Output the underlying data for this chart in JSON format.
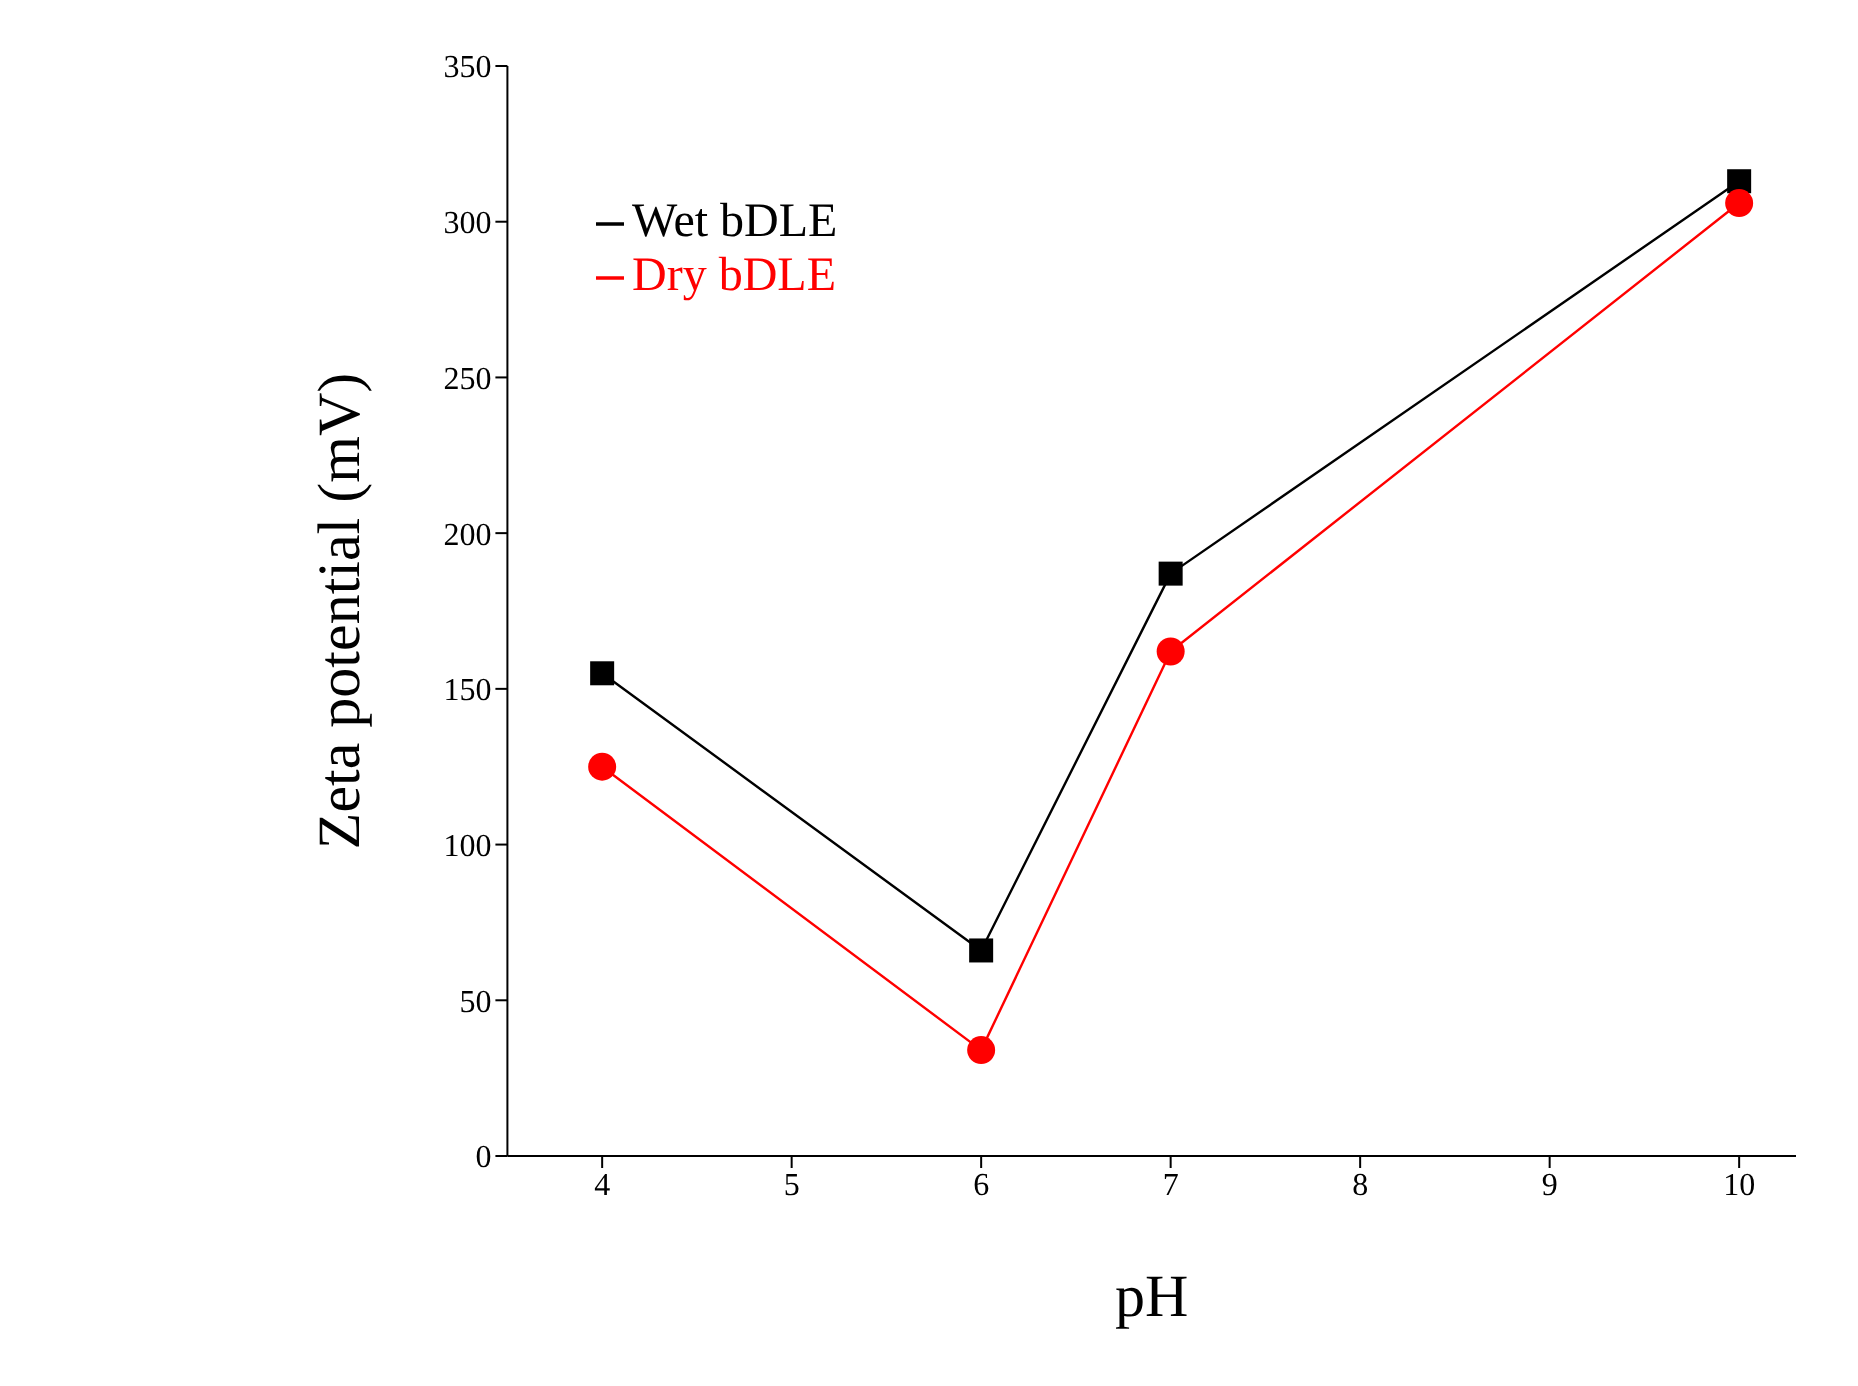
{
  "chart_data": {
    "type": "line",
    "xlabel": "pH",
    "ylabel": "Zeta potential (mV)",
    "x": [
      4,
      6,
      7,
      10
    ],
    "series": [
      {
        "name": "Wet bDLE",
        "color": "#000000",
        "values": [
          155,
          66,
          187,
          313
        ],
        "marker": "square"
      },
      {
        "name": "Dry bDLE",
        "color": "#ff0000",
        "values": [
          125,
          34,
          162,
          306
        ],
        "marker": "circle"
      }
    ],
    "xlim": [
      3.5,
      10.3
    ],
    "xticks": [
      4,
      5,
      6,
      7,
      8,
      9,
      10
    ],
    "ylim": [
      0,
      350
    ],
    "yticks": [
      0,
      50,
      100,
      150,
      200,
      250,
      300,
      350
    ],
    "grid": false,
    "legend": "top left"
  }
}
